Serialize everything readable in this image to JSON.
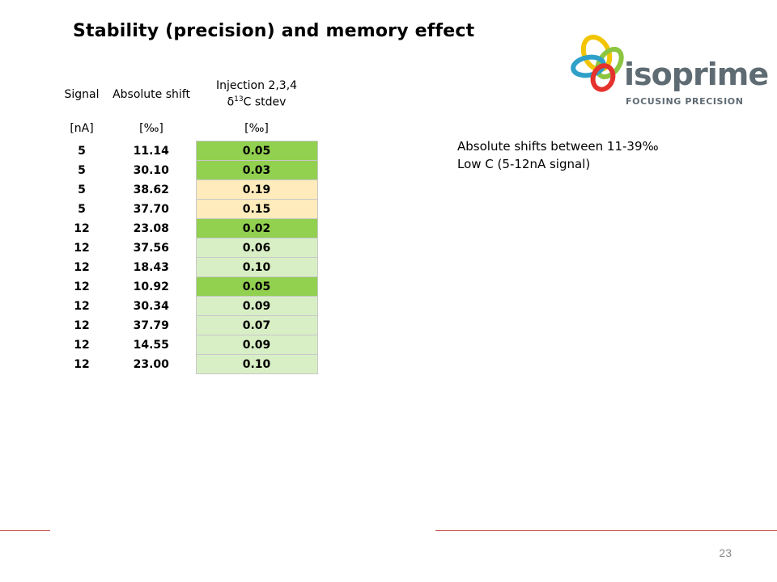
{
  "title": "Stability (precision) and memory effect",
  "logo": {
    "word": "isoprime",
    "tagline": "FOCUSING PRECISION",
    "colors": [
      "#f2c500",
      "#8cc63f",
      "#2fa0c8",
      "#e5322d"
    ]
  },
  "table": {
    "headers": {
      "signal": "Signal",
      "abs_shift": "Absolute shift",
      "inj_line1": "Injection 2,3,4",
      "inj_delta": "δ",
      "inj_sup": "13",
      "inj_tail": "C stdev"
    },
    "units": [
      "[nA]",
      "[‰]",
      "[‰]"
    ],
    "rows": [
      {
        "signal": "5",
        "abs": "11.14",
        "std": "0.05",
        "tone": "high"
      },
      {
        "signal": "5",
        "abs": "30.10",
        "std": "0.03",
        "tone": "high"
      },
      {
        "signal": "5",
        "abs": "38.62",
        "std": "0.19",
        "tone": "warn"
      },
      {
        "signal": "5",
        "abs": "37.70",
        "std": "0.15",
        "tone": "warn"
      },
      {
        "signal": "12",
        "abs": "23.08",
        "std": "0.02",
        "tone": "high"
      },
      {
        "signal": "12",
        "abs": "37.56",
        "std": "0.06",
        "tone": "mid"
      },
      {
        "signal": "12",
        "abs": "18.43",
        "std": "0.10",
        "tone": "mid"
      },
      {
        "signal": "12",
        "abs": "10.92",
        "std": "0.05",
        "tone": "high"
      },
      {
        "signal": "12",
        "abs": "30.34",
        "std": "0.09",
        "tone": "mid"
      },
      {
        "signal": "12",
        "abs": "37.79",
        "std": "0.07",
        "tone": "mid"
      },
      {
        "signal": "12",
        "abs": "14.55",
        "std": "0.09",
        "tone": "mid"
      },
      {
        "signal": "12",
        "abs": "23.00",
        "std": "0.10",
        "tone": "mid"
      }
    ]
  },
  "notes": [
    "Absolute shifts between 11-39‰",
    "Low C (5-12nA signal)"
  ],
  "page_number": "23"
}
